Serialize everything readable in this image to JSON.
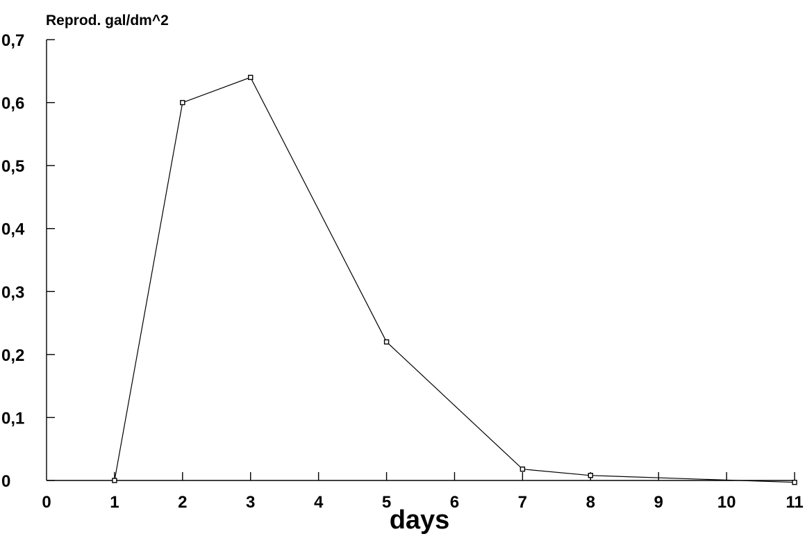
{
  "chart_data": {
    "type": "line",
    "title": "",
    "ylabel": "Reprod. gal/dm^2",
    "xlabel": "days",
    "xlim": [
      0,
      11
    ],
    "ylim": [
      0,
      0.7
    ],
    "x_ticks": [
      "0",
      "1",
      "2",
      "3",
      "4",
      "5",
      "6",
      "7",
      "8",
      "9",
      "10",
      "11"
    ],
    "y_ticks": [
      "0",
      "0,1",
      "0,2",
      "0,3",
      "0,4",
      "0,5",
      "0,6",
      "0,7"
    ],
    "grid": false,
    "legend": "none",
    "series": [
      {
        "x": [
          1,
          2,
          3,
          5,
          7,
          8,
          11
        ],
        "values": [
          0,
          0.6,
          0.64,
          0.22,
          0.018,
          0.008,
          -0.003
        ]
      }
    ]
  }
}
